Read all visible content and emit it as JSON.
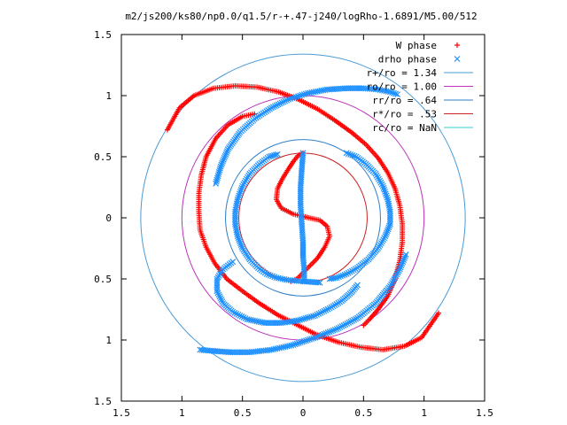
{
  "chart_data": {
    "type": "scatter",
    "title": "m2/js200/ks80/np0.0/q1.5/r-+.47-j240/logRho-1.6891/M5.00/512",
    "xlabel": "",
    "ylabel": "",
    "xlim": [
      -1.5,
      1.5
    ],
    "ylim": [
      -1.5,
      1.5
    ],
    "x_ticks": [
      -1.5,
      -1,
      -0.5,
      0,
      0.5,
      1,
      1.5
    ],
    "y_ticks": [
      -1.5,
      -1,
      -0.5,
      0,
      0.5,
      1,
      1.5
    ],
    "x_tick_labels": [
      "1.5",
      "1",
      "0.5",
      "0",
      "0.5",
      "1",
      "1.5"
    ],
    "y_tick_labels": [
      "1.5",
      "1",
      "0.5",
      "0",
      "0.5",
      "1",
      "1.5"
    ],
    "grid": false,
    "legend_position": "top-right",
    "series": [
      {
        "name": "W phase",
        "marker": "plus",
        "color": "#ff0000",
        "arms": [
          {
            "x": [
              0.5,
              0.55,
              0.62,
              0.7,
              0.76,
              0.8,
              0.82,
              0.82,
              0.8,
              0.76,
              0.7,
              0.62,
              0.52,
              0.4,
              0.26,
              0.12,
              -0.04,
              -0.2,
              -0.38,
              -0.56,
              -0.74,
              -0.9,
              -1.02,
              -1.12
            ],
            "y": [
              -0.88,
              -0.83,
              -0.75,
              -0.64,
              -0.5,
              -0.35,
              -0.2,
              -0.05,
              0.1,
              0.24,
              0.37,
              0.49,
              0.6,
              0.7,
              0.8,
              0.89,
              0.97,
              1.03,
              1.07,
              1.08,
              1.06,
              1.0,
              0.9,
              0.72
            ]
          },
          {
            "x": [
              -0.4,
              -0.5,
              -0.62,
              -0.72,
              -0.8,
              -0.84,
              -0.86,
              -0.86,
              -0.85,
              -0.8,
              -0.73,
              -0.63,
              -0.5,
              -0.36,
              -0.2,
              -0.04,
              0.12,
              0.3,
              0.48,
              0.66,
              0.84,
              0.98,
              1.12
            ],
            "y": [
              0.85,
              0.83,
              0.76,
              0.65,
              0.5,
              0.35,
              0.2,
              0.05,
              -0.1,
              -0.24,
              -0.37,
              -0.5,
              -0.6,
              -0.7,
              -0.8,
              -0.88,
              -0.96,
              -1.02,
              -1.06,
              -1.08,
              -1.05,
              -0.98,
              -0.78
            ]
          },
          {
            "x": [
              -0.1,
              -0.05,
              0.0,
              0.05,
              0.12,
              0.18,
              0.22,
              0.2,
              0.14,
              0.05,
              -0.08,
              -0.18,
              -0.22,
              -0.21,
              -0.17,
              -0.12,
              -0.08,
              -0.04,
              0.0
            ],
            "y": [
              -0.52,
              -0.5,
              -0.45,
              -0.4,
              -0.33,
              -0.24,
              -0.15,
              -0.07,
              -0.02,
              0.0,
              0.03,
              0.08,
              0.15,
              0.24,
              0.32,
              0.4,
              0.46,
              0.51,
              0.53
            ]
          }
        ]
      },
      {
        "name": "drho phase",
        "marker": "cross",
        "color": "#1e90ff",
        "arms": [
          {
            "x": [
              0.36,
              0.44,
              0.52,
              0.6,
              0.66,
              0.7,
              0.72,
              0.72,
              0.68,
              0.62,
              0.54,
              0.45,
              0.36,
              0.28,
              0.22
            ],
            "y": [
              0.53,
              0.5,
              0.44,
              0.36,
              0.26,
              0.15,
              0.05,
              -0.05,
              -0.15,
              -0.25,
              -0.34,
              -0.41,
              -0.46,
              -0.49,
              -0.5
            ]
          },
          {
            "x": [
              -0.21,
              -0.28,
              -0.36,
              -0.44,
              -0.5,
              -0.54,
              -0.56,
              -0.56,
              -0.54,
              -0.5,
              -0.44,
              -0.37,
              -0.3,
              -0.22,
              -0.12,
              0.0,
              0.14
            ],
            "y": [
              0.52,
              0.5,
              0.44,
              0.36,
              0.26,
              0.15,
              0.05,
              -0.05,
              -0.15,
              -0.25,
              -0.34,
              -0.41,
              -0.46,
              -0.49,
              -0.51,
              -0.52,
              -0.53
            ]
          },
          {
            "x": [
              0.45,
              0.4,
              0.32,
              0.22,
              0.1,
              -0.04,
              -0.18,
              -0.32,
              -0.46,
              -0.58,
              -0.66,
              -0.71,
              -0.71,
              -0.66,
              -0.58
            ],
            "y": [
              -0.55,
              -0.61,
              -0.68,
              -0.74,
              -0.8,
              -0.84,
              -0.86,
              -0.86,
              -0.83,
              -0.77,
              -0.7,
              -0.6,
              -0.5,
              -0.42,
              -0.36
            ]
          },
          {
            "x": [
              0.85,
              0.8,
              0.72,
              0.6,
              0.45,
              0.28,
              0.1,
              -0.08,
              -0.26,
              -0.44,
              -0.6,
              -0.74,
              -0.85
            ],
            "y": [
              -0.3,
              -0.42,
              -0.56,
              -0.7,
              -0.82,
              -0.91,
              -0.98,
              -1.04,
              -1.08,
              -1.1,
              -1.1,
              -1.09,
              -1.08
            ]
          },
          {
            "x": [
              -0.72,
              -0.68,
              -0.62,
              -0.52,
              -0.4,
              -0.26,
              -0.12,
              0.04,
              0.2,
              0.36,
              0.5,
              0.62,
              0.72,
              0.78
            ],
            "y": [
              0.28,
              0.42,
              0.56,
              0.7,
              0.81,
              0.9,
              0.97,
              1.02,
              1.05,
              1.06,
              1.06,
              1.05,
              1.03,
              1.01
            ]
          },
          {
            "x": [
              0.0,
              -0.01,
              -0.02,
              -0.02,
              -0.01,
              0.0,
              0.0,
              0.01,
              0.01
            ],
            "y": [
              0.53,
              0.4,
              0.25,
              0.1,
              -0.05,
              -0.2,
              -0.32,
              -0.42,
              -0.52
            ]
          }
        ]
      }
    ],
    "circles": [
      {
        "name": "r+/ro = 1.34",
        "radius": 1.34,
        "color": "#4a9bd6"
      },
      {
        "name": "ro/ro = 1.00",
        "radius": 1.0,
        "color": "#bb33bb"
      },
      {
        "name": "rr/ro = .64",
        "radius": 0.64,
        "color": "#2f7fc8"
      },
      {
        "name": "r*/ro = .53",
        "radius": 0.53,
        "color": "#cc2222"
      },
      {
        "name": "rc/ro = NaN",
        "radius": null,
        "color": "#33cccc"
      }
    ]
  }
}
